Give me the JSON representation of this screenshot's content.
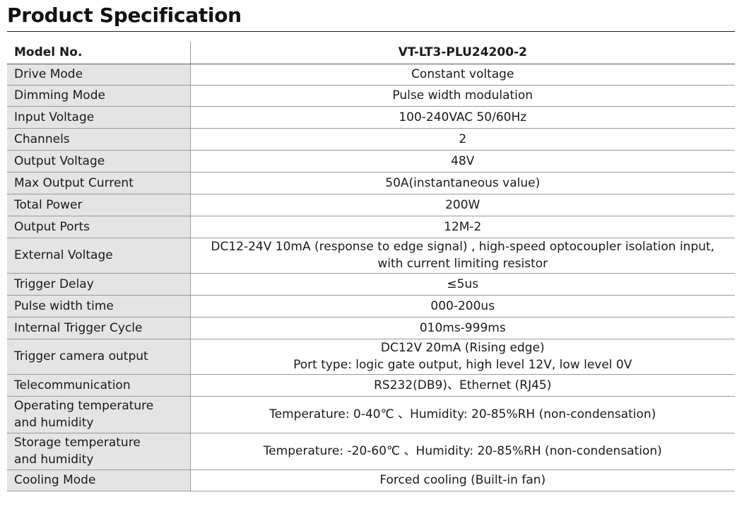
{
  "title": "Product Specification",
  "header": {
    "label": "Model No.",
    "value": "VT-LT3-PLU24200-2"
  },
  "rows": [
    {
      "label": "Drive Mode",
      "value": [
        "Constant voltage"
      ]
    },
    {
      "label": "Dimming Mode",
      "value": [
        "Pulse width modulation"
      ]
    },
    {
      "label": "Input Voltage",
      "value": [
        "100-240VAC 50/60Hz"
      ]
    },
    {
      "label": "Channels",
      "value": [
        "2"
      ]
    },
    {
      "label": "Output Voltage",
      "value": [
        "48V"
      ]
    },
    {
      "label": "Max Output Current",
      "value": [
        "50A(instantaneous value)"
      ]
    },
    {
      "label": "Total Power",
      "value": [
        "200W"
      ]
    },
    {
      "label": "Output Ports",
      "value": [
        "12M-2"
      ]
    },
    {
      "label": "External Voltage",
      "value": [
        "DC12-24V 10mA (response to edge signal) , high-speed optocoupler isolation input,",
        "with current limiting resistor"
      ]
    },
    {
      "label": "Trigger Delay",
      "value": [
        "≤5us"
      ]
    },
    {
      "label": "Pulse width time",
      "value": [
        "000-200us"
      ]
    },
    {
      "label": "Internal Trigger Cycle",
      "value": [
        "010ms-999ms"
      ]
    },
    {
      "label": "Trigger camera output",
      "value": [
        "DC12V 20mA (Rising edge)",
        "Port type: logic gate output, high level 12V, low level 0V"
      ]
    },
    {
      "label": "Telecommunication",
      "value": [
        "RS232(DB9)、Ethernet (RJ45)"
      ]
    },
    {
      "label": "Operating temperature\nand humidity",
      "value": [
        "Temperature: 0-40℃ 、Humidity: 20-85%RH (non-condensation)"
      ]
    },
    {
      "label": "Storage temperature\nand humidity",
      "value": [
        "Temperature: -20-60℃ 、Humidity: 20-85%RH (non-condensation)"
      ]
    },
    {
      "label": "Cooling Mode",
      "value": [
        "Forced cooling (Built-in fan)"
      ]
    }
  ]
}
